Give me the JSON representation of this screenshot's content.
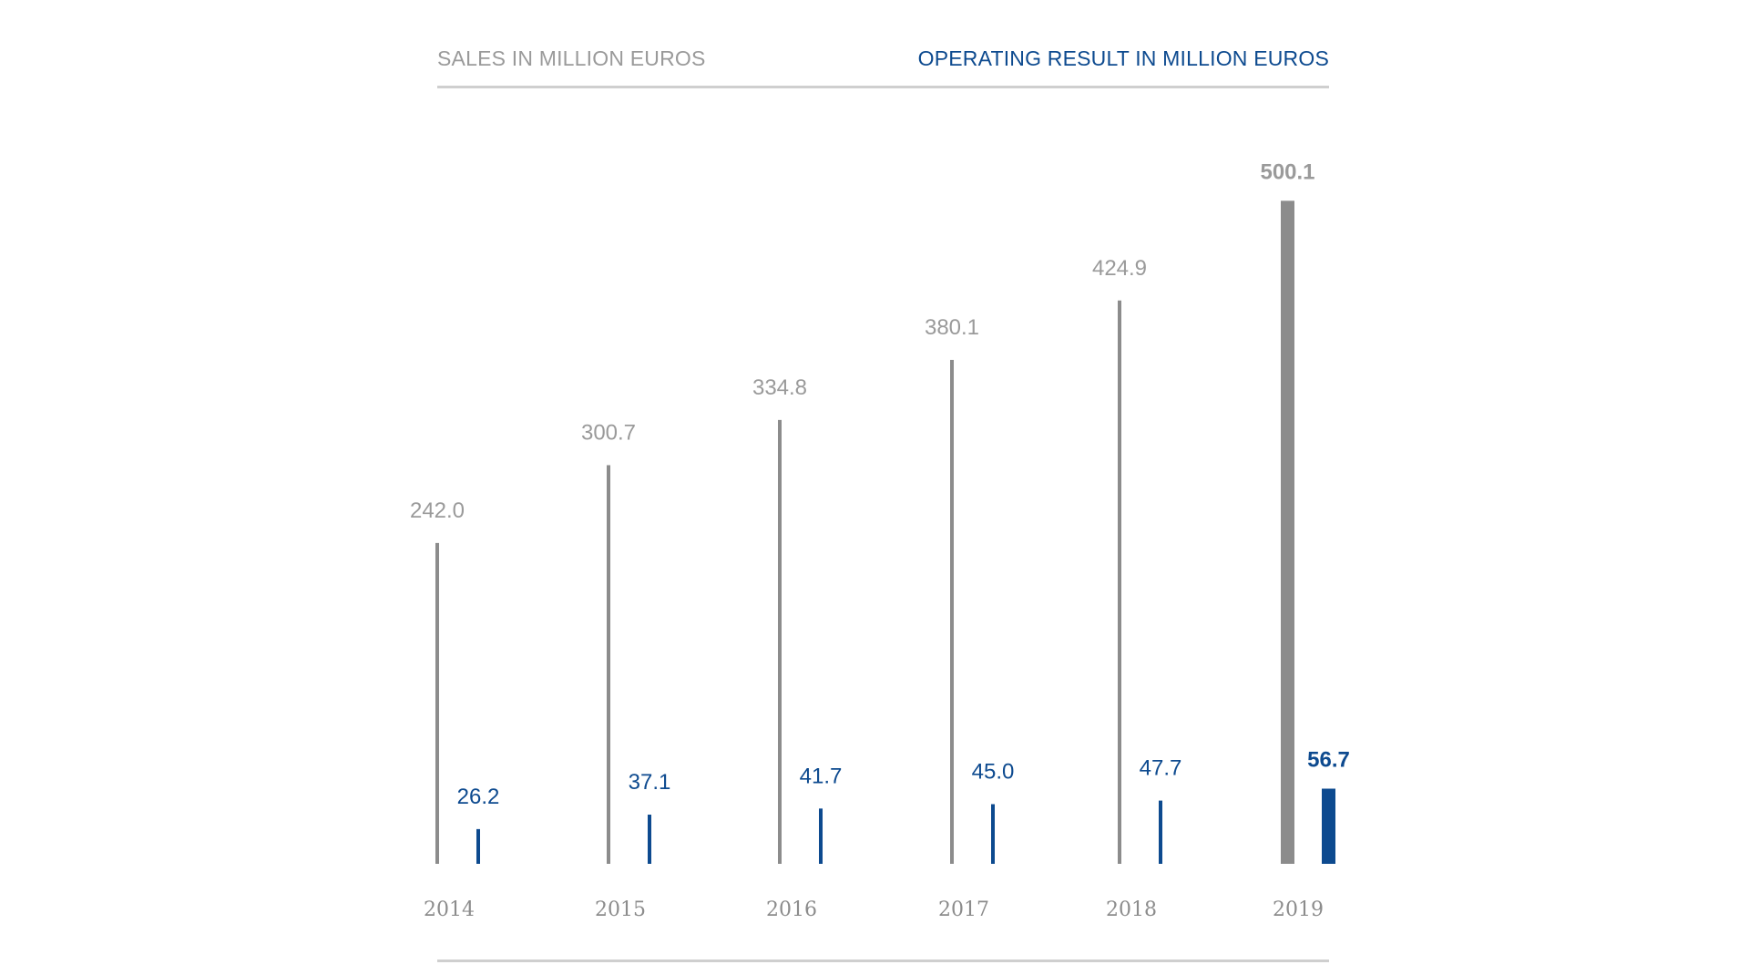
{
  "legend": {
    "sales_label": "SALES IN MILLION EUROS",
    "result_label": "OPERATING RESULT IN MILLION EUROS"
  },
  "colors": {
    "sales": "#8c8c8c",
    "sales_label": "#9a9a9a",
    "result": "#0d4a8f",
    "rule": "#cfcfcf"
  },
  "chart_data": {
    "type": "bar",
    "categories": [
      "2014",
      "2015",
      "2016",
      "2017",
      "2018",
      "2019"
    ],
    "series": [
      {
        "name": "SALES IN MILLION EUROS",
        "values": [
          242.0,
          300.7,
          334.8,
          380.1,
          424.9,
          500.1
        ],
        "labels": [
          "242.0",
          "300.7",
          "334.8",
          "380.1",
          "424.9",
          "500.1"
        ]
      },
      {
        "name": "OPERATING RESULT IN MILLION EUROS",
        "values": [
          26.2,
          37.1,
          41.7,
          45.0,
          47.7,
          56.7
        ],
        "labels": [
          "26.2",
          "37.1",
          "41.7",
          "45.0",
          "47.7",
          "56.7"
        ]
      }
    ],
    "highlight_category": "2019",
    "title": "",
    "xlabel": "",
    "ylabel": "",
    "grid": false,
    "legend_position": "top"
  }
}
